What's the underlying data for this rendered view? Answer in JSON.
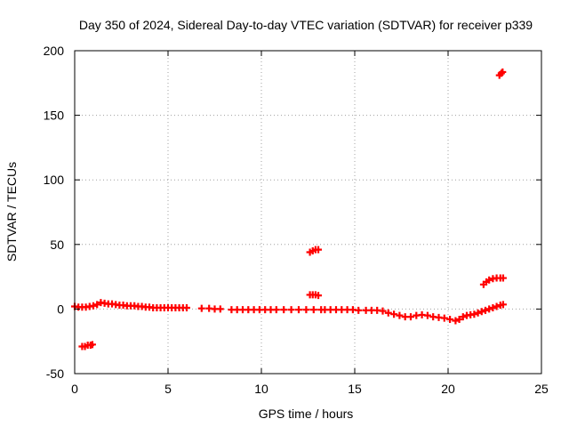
{
  "chart_data": {
    "type": "scatter",
    "title": "Day 350 of 2024, Sidereal Day-to-day VTEC variation (SDTVAR) for receiver p339",
    "xlabel": "GPS time / hours",
    "ylabel": "SDTVAR / TECUs",
    "xlim": [
      0,
      25
    ],
    "ylim": [
      -50,
      200
    ],
    "xticks": [
      0,
      5,
      10,
      15,
      20,
      25
    ],
    "yticks": [
      -50,
      0,
      50,
      100,
      150,
      200
    ],
    "xtick_labels": [
      "0",
      "5",
      "10",
      "15",
      "20",
      "25"
    ],
    "ytick_labels": [
      "-50",
      "0",
      "50",
      "100",
      "150",
      "200"
    ],
    "grid": true,
    "marker": "plus",
    "marker_color": "#ff0000",
    "series": [
      {
        "name": "main",
        "points": [
          [
            0.0,
            2
          ],
          [
            0.2,
            1.5
          ],
          [
            0.4,
            1.5
          ],
          [
            0.6,
            1.5
          ],
          [
            0.8,
            2
          ],
          [
            1.0,
            2.5
          ],
          [
            1.2,
            3.5
          ],
          [
            1.4,
            5
          ],
          [
            1.6,
            4.5
          ],
          [
            1.8,
            4
          ],
          [
            2.0,
            4
          ],
          [
            2.2,
            3.5
          ],
          [
            2.4,
            3
          ],
          [
            2.6,
            3
          ],
          [
            2.8,
            2.5
          ],
          [
            3.0,
            2.5
          ],
          [
            3.2,
            2.5
          ],
          [
            3.4,
            2
          ],
          [
            3.6,
            2
          ],
          [
            3.8,
            1.5
          ],
          [
            4.0,
            1.5
          ],
          [
            4.2,
            1
          ],
          [
            4.4,
            1
          ],
          [
            4.6,
            1
          ],
          [
            4.8,
            1
          ],
          [
            5.0,
            1
          ],
          [
            5.2,
            1
          ],
          [
            5.4,
            1
          ],
          [
            5.6,
            1
          ],
          [
            5.8,
            1
          ],
          [
            6.0,
            1
          ],
          [
            6.8,
            0.5
          ],
          [
            7.2,
            0.5
          ],
          [
            7.5,
            0
          ],
          [
            7.8,
            0
          ],
          [
            8.4,
            -0.5
          ],
          [
            8.7,
            -0.5
          ],
          [
            9.0,
            -0.5
          ],
          [
            9.3,
            -0.5
          ],
          [
            9.6,
            -0.5
          ],
          [
            9.9,
            -0.5
          ],
          [
            10.2,
            -0.5
          ],
          [
            10.5,
            -0.5
          ],
          [
            10.8,
            -0.5
          ],
          [
            11.2,
            -0.5
          ],
          [
            11.6,
            -0.5
          ],
          [
            12.0,
            -0.5
          ],
          [
            12.4,
            -0.5
          ],
          [
            12.8,
            -0.5
          ],
          [
            13.2,
            -0.5
          ],
          [
            13.4,
            -0.5
          ],
          [
            13.7,
            -0.5
          ],
          [
            14.0,
            -0.5
          ],
          [
            14.3,
            -0.5
          ],
          [
            14.6,
            -0.5
          ],
          [
            14.9,
            -0.5
          ],
          [
            15.2,
            -1
          ],
          [
            15.6,
            -1
          ],
          [
            15.9,
            -1
          ],
          [
            16.2,
            -1
          ],
          [
            16.5,
            -1.5
          ],
          [
            16.8,
            -3
          ],
          [
            17.1,
            -4
          ],
          [
            17.4,
            -5
          ],
          [
            17.7,
            -6
          ],
          [
            18.0,
            -6
          ],
          [
            18.3,
            -5
          ],
          [
            18.6,
            -4.5
          ],
          [
            18.9,
            -5
          ],
          [
            19.2,
            -6
          ],
          [
            19.5,
            -6.5
          ],
          [
            19.8,
            -7
          ],
          [
            20.1,
            -8
          ],
          [
            20.4,
            -9
          ],
          [
            20.6,
            -8
          ],
          [
            20.8,
            -6
          ],
          [
            21.0,
            -5
          ],
          [
            21.2,
            -4.5
          ],
          [
            21.4,
            -4
          ],
          [
            21.6,
            -3
          ],
          [
            21.8,
            -2
          ],
          [
            22.0,
            -1
          ],
          [
            22.2,
            0
          ],
          [
            22.4,
            1
          ],
          [
            22.6,
            2
          ],
          [
            22.8,
            3
          ],
          [
            22.95,
            3.5
          ]
        ]
      },
      {
        "name": "segment-a",
        "points": [
          [
            0.4,
            -29
          ],
          [
            0.55,
            -29
          ],
          [
            0.7,
            -28
          ],
          [
            0.85,
            -28
          ],
          [
            0.95,
            -27.5
          ]
        ]
      },
      {
        "name": "segment-b",
        "points": [
          [
            12.6,
            44
          ],
          [
            12.75,
            45
          ],
          [
            12.9,
            46
          ],
          [
            13.05,
            46
          ]
        ]
      },
      {
        "name": "segment-c",
        "points": [
          [
            12.6,
            11
          ],
          [
            12.75,
            11
          ],
          [
            12.9,
            11
          ],
          [
            13.05,
            10.5
          ]
        ]
      },
      {
        "name": "segment-d",
        "points": [
          [
            21.9,
            19
          ],
          [
            22.05,
            21
          ],
          [
            22.2,
            22.5
          ],
          [
            22.4,
            23.5
          ],
          [
            22.6,
            24
          ],
          [
            22.8,
            24
          ],
          [
            22.95,
            24
          ]
        ]
      },
      {
        "name": "segment-e",
        "points": [
          [
            22.75,
            181
          ],
          [
            22.85,
            182.5
          ],
          [
            22.92,
            183.5
          ]
        ]
      }
    ]
  }
}
